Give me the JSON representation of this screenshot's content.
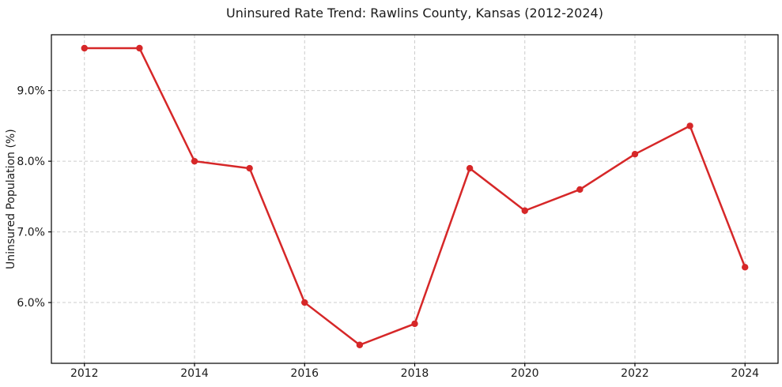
{
  "figure": {
    "title": "Uninsured Rate Trend: Rawlins County, Kansas (2012-2024)",
    "ylabel": "Uninsured Population (%)"
  },
  "chart_data": {
    "type": "line",
    "title": "Uninsured Rate Trend: Rawlins County, Kansas (2012-2024)",
    "xlabel": "",
    "ylabel": "Uninsured Population (%)",
    "x": [
      2012,
      2013,
      2014,
      2015,
      2016,
      2017,
      2018,
      2019,
      2020,
      2021,
      2022,
      2023,
      2024
    ],
    "values": [
      9.6,
      9.6,
      8.0,
      7.9,
      6.0,
      5.4,
      5.7,
      7.9,
      7.3,
      7.6,
      8.1,
      8.5,
      6.5
    ],
    "unit": "%",
    "xticks": [
      2012,
      2014,
      2016,
      2018,
      2020,
      2022,
      2024
    ],
    "xtick_labels": [
      "2012",
      "2014",
      "2016",
      "2018",
      "2020",
      "2022",
      "2024"
    ],
    "yticks": [
      6.0,
      7.0,
      8.0,
      9.0
    ],
    "ytick_labels": [
      "6.0%",
      "7.0%",
      "8.0%",
      "9.0%"
    ],
    "xlim": [
      2011.4,
      2024.6
    ],
    "ylim": [
      5.14,
      9.79
    ],
    "grid": true,
    "grid_style": "dashed",
    "legend": "none",
    "marker": "circle",
    "colors": {
      "line": "#d62728",
      "marker": "#d62728",
      "grid": "#cccccc",
      "spine": "#000000",
      "text": "#1a1a1a"
    }
  }
}
